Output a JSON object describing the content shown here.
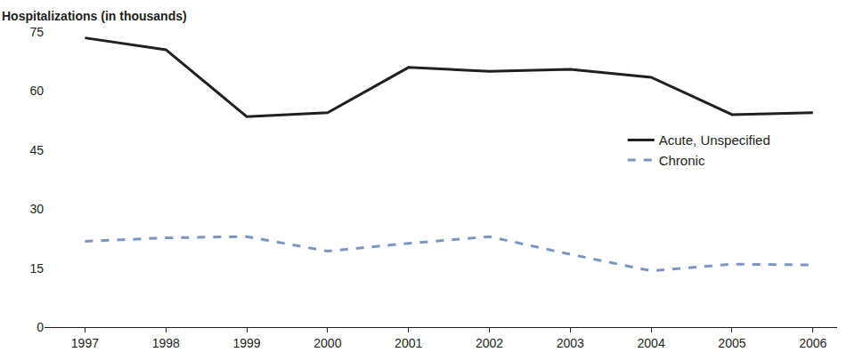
{
  "chart_data": {
    "type": "line",
    "y_label": "Hospitalizations (in thousands)",
    "x": [
      1997,
      1998,
      1999,
      2000,
      2001,
      2002,
      2003,
      2004,
      2005,
      2006
    ],
    "series": [
      {
        "name": "Acute, Unspecified",
        "color": "#231f20",
        "line_style": "solid",
        "values": [
          73.5,
          70.5,
          53.5,
          54.5,
          66,
          65,
          65.5,
          63.5,
          54,
          54.5
        ]
      },
      {
        "name": "Chronic",
        "color": "#7a96c2",
        "line_style": "dash",
        "values": [
          21.8,
          22.7,
          23,
          19.3,
          21.3,
          23,
          18.5,
          14.3,
          16,
          15.8
        ]
      }
    ],
    "xlim": [
      1996.5,
      2006.3
    ],
    "ylim": [
      0,
      75
    ],
    "xticks": [
      1997,
      1998,
      1999,
      2000,
      2001,
      2002,
      2003,
      2004,
      2005,
      2006
    ],
    "yticks": [
      0,
      15,
      30,
      45,
      60,
      75
    ],
    "grid": false,
    "legend": "right"
  }
}
